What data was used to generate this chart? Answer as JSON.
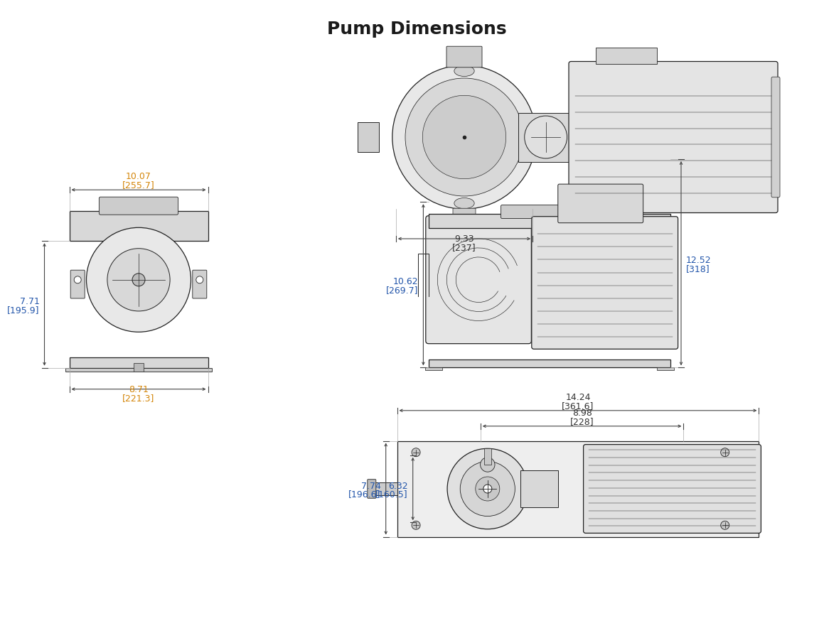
{
  "title": "Pump Dimensions",
  "title_fontsize": 18,
  "title_fontweight": "bold",
  "title_color": "#1a1a1a",
  "dim_color_orange": "#d4860a",
  "dim_color_blue": "#2255aa",
  "dim_color_black": "#333333",
  "dims": {
    "top_view_width": {
      "val": "9.33",
      "bracket": "[237]",
      "color": "#333333"
    },
    "front_width_top": {
      "val": "10.07",
      "bracket": "[255.7]",
      "color": "#d4860a"
    },
    "front_width_bottom": {
      "val": "8.71",
      "bracket": "[221.3]",
      "color": "#d4860a"
    },
    "front_height": {
      "val": "7.71",
      "bracket": "[195.9]",
      "color": "#2255aa"
    },
    "side_height_left": {
      "val": "10.62",
      "bracket": "[269.7]",
      "color": "#2255aa"
    },
    "side_height_right": {
      "val": "12.52",
      "bracket": "[318]",
      "color": "#2255aa"
    },
    "bottom_width_outer": {
      "val": "14.24",
      "bracket": "[361.6]",
      "color": "#333333"
    },
    "bottom_width_mid": {
      "val": "8.98",
      "bracket": "[228]",
      "color": "#333333"
    },
    "bottom_height_left1": {
      "val": "7.74",
      "bracket": "[196.6]",
      "color": "#2255aa"
    },
    "bottom_height_left2": {
      "val": "6.32",
      "bracket": "[160.5]",
      "color": "#2255aa"
    }
  },
  "figsize": [
    11.26,
    8.79
  ],
  "dpi": 100,
  "xlim": [
    0,
    1126
  ],
  "ylim": [
    0,
    879
  ]
}
